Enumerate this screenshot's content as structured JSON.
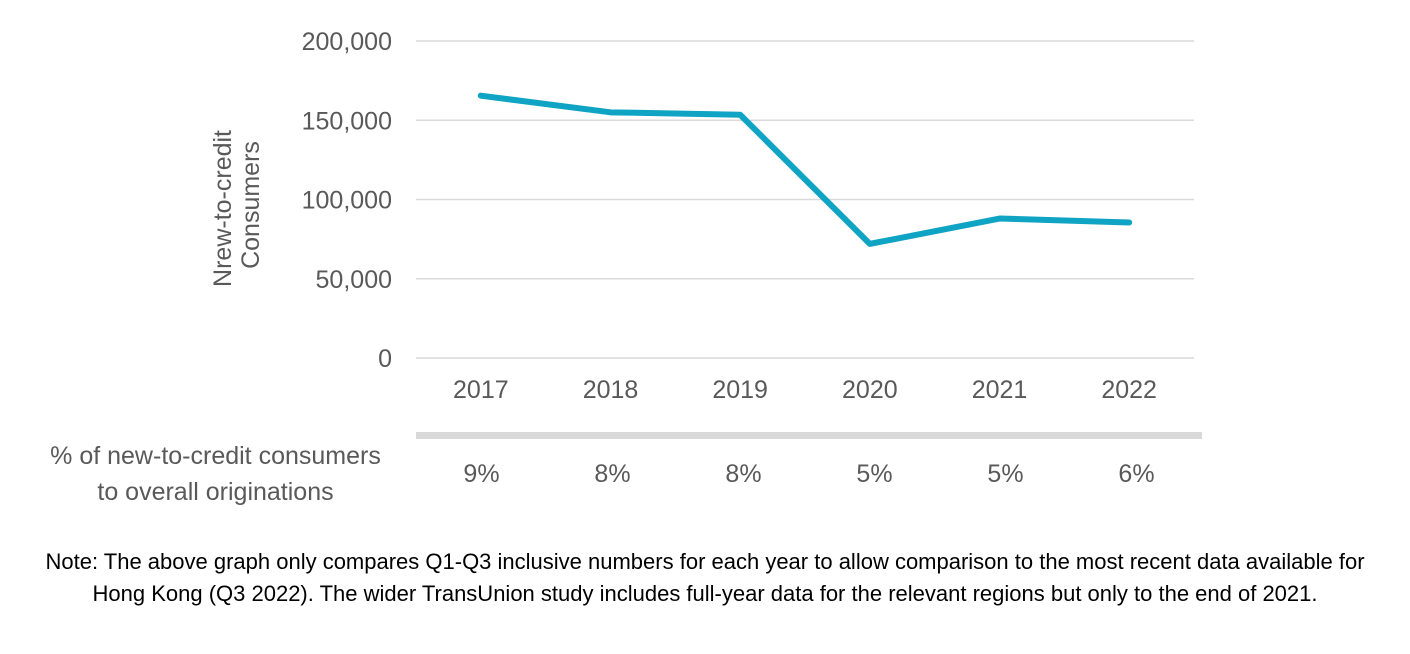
{
  "chart_data": {
    "type": "line",
    "categories": [
      "2017",
      "2018",
      "2019",
      "2020",
      "2021",
      "2022"
    ],
    "series": [
      {
        "values": [
          165500,
          155000,
          153500,
          72000,
          88000,
          85500
        ]
      }
    ],
    "ylabel_lines": [
      "Nrew-to-credit",
      "Consumers"
    ],
    "ylim": [
      0,
      200000
    ],
    "yticks": [
      0,
      50000,
      100000,
      150000,
      200000
    ],
    "ytick_labels": [
      "0",
      "50,000",
      "100,000",
      "150,000",
      "200,000"
    ],
    "grid": true,
    "line_color": "#0fa4c4"
  },
  "pct_row": {
    "label": "% of new-to-credit consumers to overall originations",
    "label_lines": [
      "% of new-to-credit consumers",
      "to overall originations"
    ],
    "values": [
      "9%",
      "8%",
      "8%",
      "5%",
      "5%",
      "6%"
    ]
  },
  "note": "Note: The above graph only compares Q1-Q3 inclusive numbers for each year to allow comparison to the most recent data available for Hong Kong (Q3 2022). The wider TransUnion study includes full-year data for the relevant regions but only to the end of 2021."
}
